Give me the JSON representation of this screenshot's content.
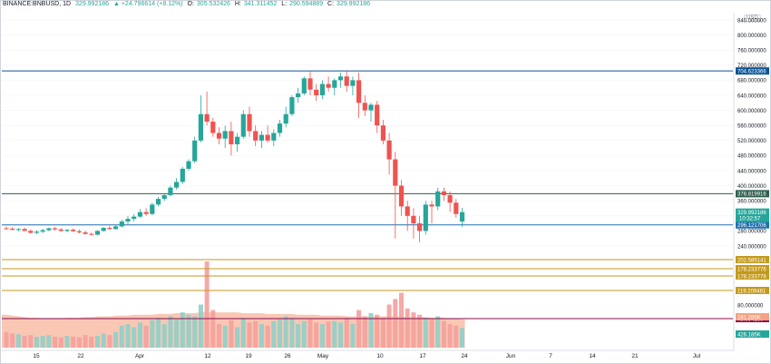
{
  "header": {
    "symbol": "BINANCE:BNBUSD, 1D",
    "last": "329.992186",
    "change": "▲ +24.796614 (+8.12%)",
    "open_label": "O:",
    "open": "305.532426",
    "high_label": "H:",
    "high": "341.311452",
    "low_label": "L:",
    "low": "290.594889",
    "close_label": "C:",
    "close": "329.992186"
  },
  "currency": "USD",
  "colors": {
    "up": "#26a69a",
    "down": "#ef5350",
    "resistance_line": "#0b5394",
    "support_line": "#1e6fb0",
    "dark_green_line": "#2e5e4e",
    "orange_line": "#c49a1c",
    "volume_ma": "#f5a282",
    "volume_line": "#880e4f"
  },
  "chart_data": {
    "type": "candlestick",
    "price_axis": {
      "ylim": [
        216,
        846
      ],
      "ticks": [
        240,
        280,
        320,
        360,
        400,
        440,
        480,
        520,
        560,
        600,
        640,
        680,
        720,
        760,
        800,
        840
      ],
      "tick_labels": [
        "240.000000",
        "280.000000",
        "320.000000",
        "360.000000",
        "400.000000",
        "440.000000",
        "480.000000",
        "520.000000",
        "560.000000",
        "600.000000",
        "640.000000",
        "680.000000",
        "720.000000",
        "760.000000",
        "800.000000",
        "840.000000"
      ]
    },
    "time_axis": {
      "labels": [
        "15",
        "22",
        "Apr",
        "12",
        "19",
        "26",
        "May",
        "10",
        "17",
        "24",
        "Jun",
        "7",
        "14",
        "21",
        "Jul"
      ]
    },
    "candles": [
      [
        287,
        292,
        283,
        286
      ],
      [
        286,
        290,
        282,
        283
      ],
      [
        283,
        288,
        279,
        285
      ],
      [
        285,
        289,
        281,
        280
      ],
      [
        280,
        284,
        273,
        275
      ],
      [
        275,
        282,
        271,
        278
      ],
      [
        278,
        286,
        274,
        282
      ],
      [
        282,
        289,
        279,
        287
      ],
      [
        287,
        291,
        281,
        284
      ],
      [
        284,
        288,
        278,
        280
      ],
      [
        280,
        285,
        276,
        283
      ],
      [
        283,
        287,
        278,
        279
      ],
      [
        279,
        284,
        273,
        276
      ],
      [
        276,
        281,
        270,
        272
      ],
      [
        272,
        276,
        267,
        270
      ],
      [
        270,
        282,
        268,
        280
      ],
      [
        280,
        290,
        278,
        288
      ],
      [
        288,
        294,
        283,
        285
      ],
      [
        285,
        295,
        283,
        292
      ],
      [
        292,
        310,
        289,
        305
      ],
      [
        305,
        320,
        298,
        312
      ],
      [
        312,
        325,
        305,
        318
      ],
      [
        318,
        338,
        314,
        330
      ],
      [
        330,
        340,
        320,
        325
      ],
      [
        325,
        355,
        322,
        350
      ],
      [
        350,
        370,
        345,
        365
      ],
      [
        365,
        380,
        360,
        375
      ],
      [
        375,
        400,
        372,
        395
      ],
      [
        395,
        420,
        390,
        410
      ],
      [
        410,
        450,
        405,
        445
      ],
      [
        445,
        470,
        440,
        465
      ],
      [
        465,
        530,
        460,
        520
      ],
      [
        520,
        640,
        515,
        590
      ],
      [
        590,
        650,
        560,
        570
      ],
      [
        570,
        580,
        530,
        540
      ],
      [
        540,
        555,
        510,
        525
      ],
      [
        525,
        560,
        500,
        545
      ],
      [
        545,
        570,
        480,
        510
      ],
      [
        510,
        540,
        490,
        530
      ],
      [
        530,
        600,
        525,
        590
      ],
      [
        590,
        610,
        530,
        545
      ],
      [
        545,
        560,
        505,
        520
      ],
      [
        520,
        545,
        500,
        535
      ],
      [
        535,
        560,
        515,
        520
      ],
      [
        520,
        550,
        505,
        540
      ],
      [
        540,
        575,
        530,
        565
      ],
      [
        565,
        610,
        555,
        590
      ],
      [
        590,
        640,
        585,
        635
      ],
      [
        635,
        660,
        620,
        645
      ],
      [
        645,
        690,
        640,
        685
      ],
      [
        685,
        705,
        640,
        655
      ],
      [
        655,
        670,
        625,
        640
      ],
      [
        640,
        680,
        630,
        670
      ],
      [
        670,
        690,
        650,
        660
      ],
      [
        660,
        685,
        640,
        680
      ],
      [
        680,
        700,
        660,
        690
      ],
      [
        690,
        705,
        650,
        665
      ],
      [
        665,
        690,
        640,
        680
      ],
      [
        680,
        700,
        580,
        620
      ],
      [
        620,
        640,
        585,
        600
      ],
      [
        600,
        620,
        570,
        615
      ],
      [
        615,
        625,
        540,
        560
      ],
      [
        560,
        575,
        510,
        520
      ],
      [
        520,
        540,
        430,
        470
      ],
      [
        470,
        490,
        260,
        400
      ],
      [
        400,
        415,
        320,
        345
      ],
      [
        345,
        360,
        280,
        320
      ],
      [
        320,
        340,
        260,
        300
      ],
      [
        300,
        320,
        250,
        280
      ],
      [
        280,
        360,
        270,
        350
      ],
      [
        350,
        360,
        300,
        345
      ],
      [
        345,
        395,
        335,
        385
      ],
      [
        385,
        395,
        360,
        375
      ],
      [
        375,
        385,
        330,
        355
      ],
      [
        355,
        365,
        315,
        325
      ],
      [
        305,
        341,
        291,
        330
      ]
    ],
    "volumes": [
      20,
      18,
      17,
      15,
      16,
      14,
      15,
      16,
      14,
      13,
      15,
      14,
      13,
      16,
      14,
      15,
      18,
      16,
      20,
      28,
      30,
      26,
      32,
      28,
      35,
      38,
      30,
      40,
      36,
      45,
      42,
      40,
      55,
      110,
      48,
      30,
      28,
      35,
      26,
      38,
      32,
      34,
      30,
      28,
      34,
      36,
      40,
      38,
      30,
      34,
      36,
      32,
      30,
      33,
      34,
      32,
      38,
      30,
      48,
      40,
      44,
      42,
      38,
      55,
      62,
      70,
      50,
      45,
      42,
      38,
      36,
      40,
      34,
      30,
      28,
      25
    ],
    "volume_ma": [
      42,
      41,
      40,
      39,
      38,
      38,
      37,
      37,
      37,
      37,
      38,
      38,
      38,
      39,
      39,
      40,
      40,
      40,
      41,
      41,
      41,
      42,
      42,
      42,
      42,
      43,
      43,
      43,
      44,
      44,
      44,
      44,
      45,
      45,
      45,
      45,
      45,
      45,
      45,
      44,
      44,
      44,
      44,
      43,
      43,
      43,
      43,
      43,
      42,
      42,
      42,
      42,
      41,
      41,
      41,
      41,
      40,
      40,
      40,
      40,
      40,
      40,
      40,
      40,
      40,
      40,
      39,
      39,
      39,
      39,
      38,
      38,
      38,
      37,
      37,
      36
    ],
    "horizontal_lines": [
      {
        "price": 704.623366,
        "label": "704.623366",
        "style": "resistance_line"
      },
      {
        "price": 378.819916,
        "label": "378.819916",
        "style": "dark_green_line"
      },
      {
        "price": 296.121706,
        "label": "296.121706",
        "style": "support_line"
      },
      {
        "price": 202.585141,
        "label": "202.585141",
        "style": "orange_line"
      },
      {
        "price": 178.233776,
        "label": "178.233776",
        "style": "orange_line"
      },
      {
        "price": 178.233776,
        "label": "178.233776",
        "style": "orange_line"
      },
      {
        "price": 119.209461,
        "label": "119.209461",
        "style": "orange_line"
      },
      {
        "price": 43.99416,
        "label": "43.994160",
        "style": "volume_line"
      }
    ],
    "current_price": {
      "label": "329.992186",
      "countdown": "10:32:57"
    },
    "volume_labels": [
      {
        "label": "80.000000"
      },
      {
        "label": "161.285K",
        "style": "volume_ma"
      },
      {
        "label": "426.185K",
        "style": "up"
      }
    ]
  }
}
